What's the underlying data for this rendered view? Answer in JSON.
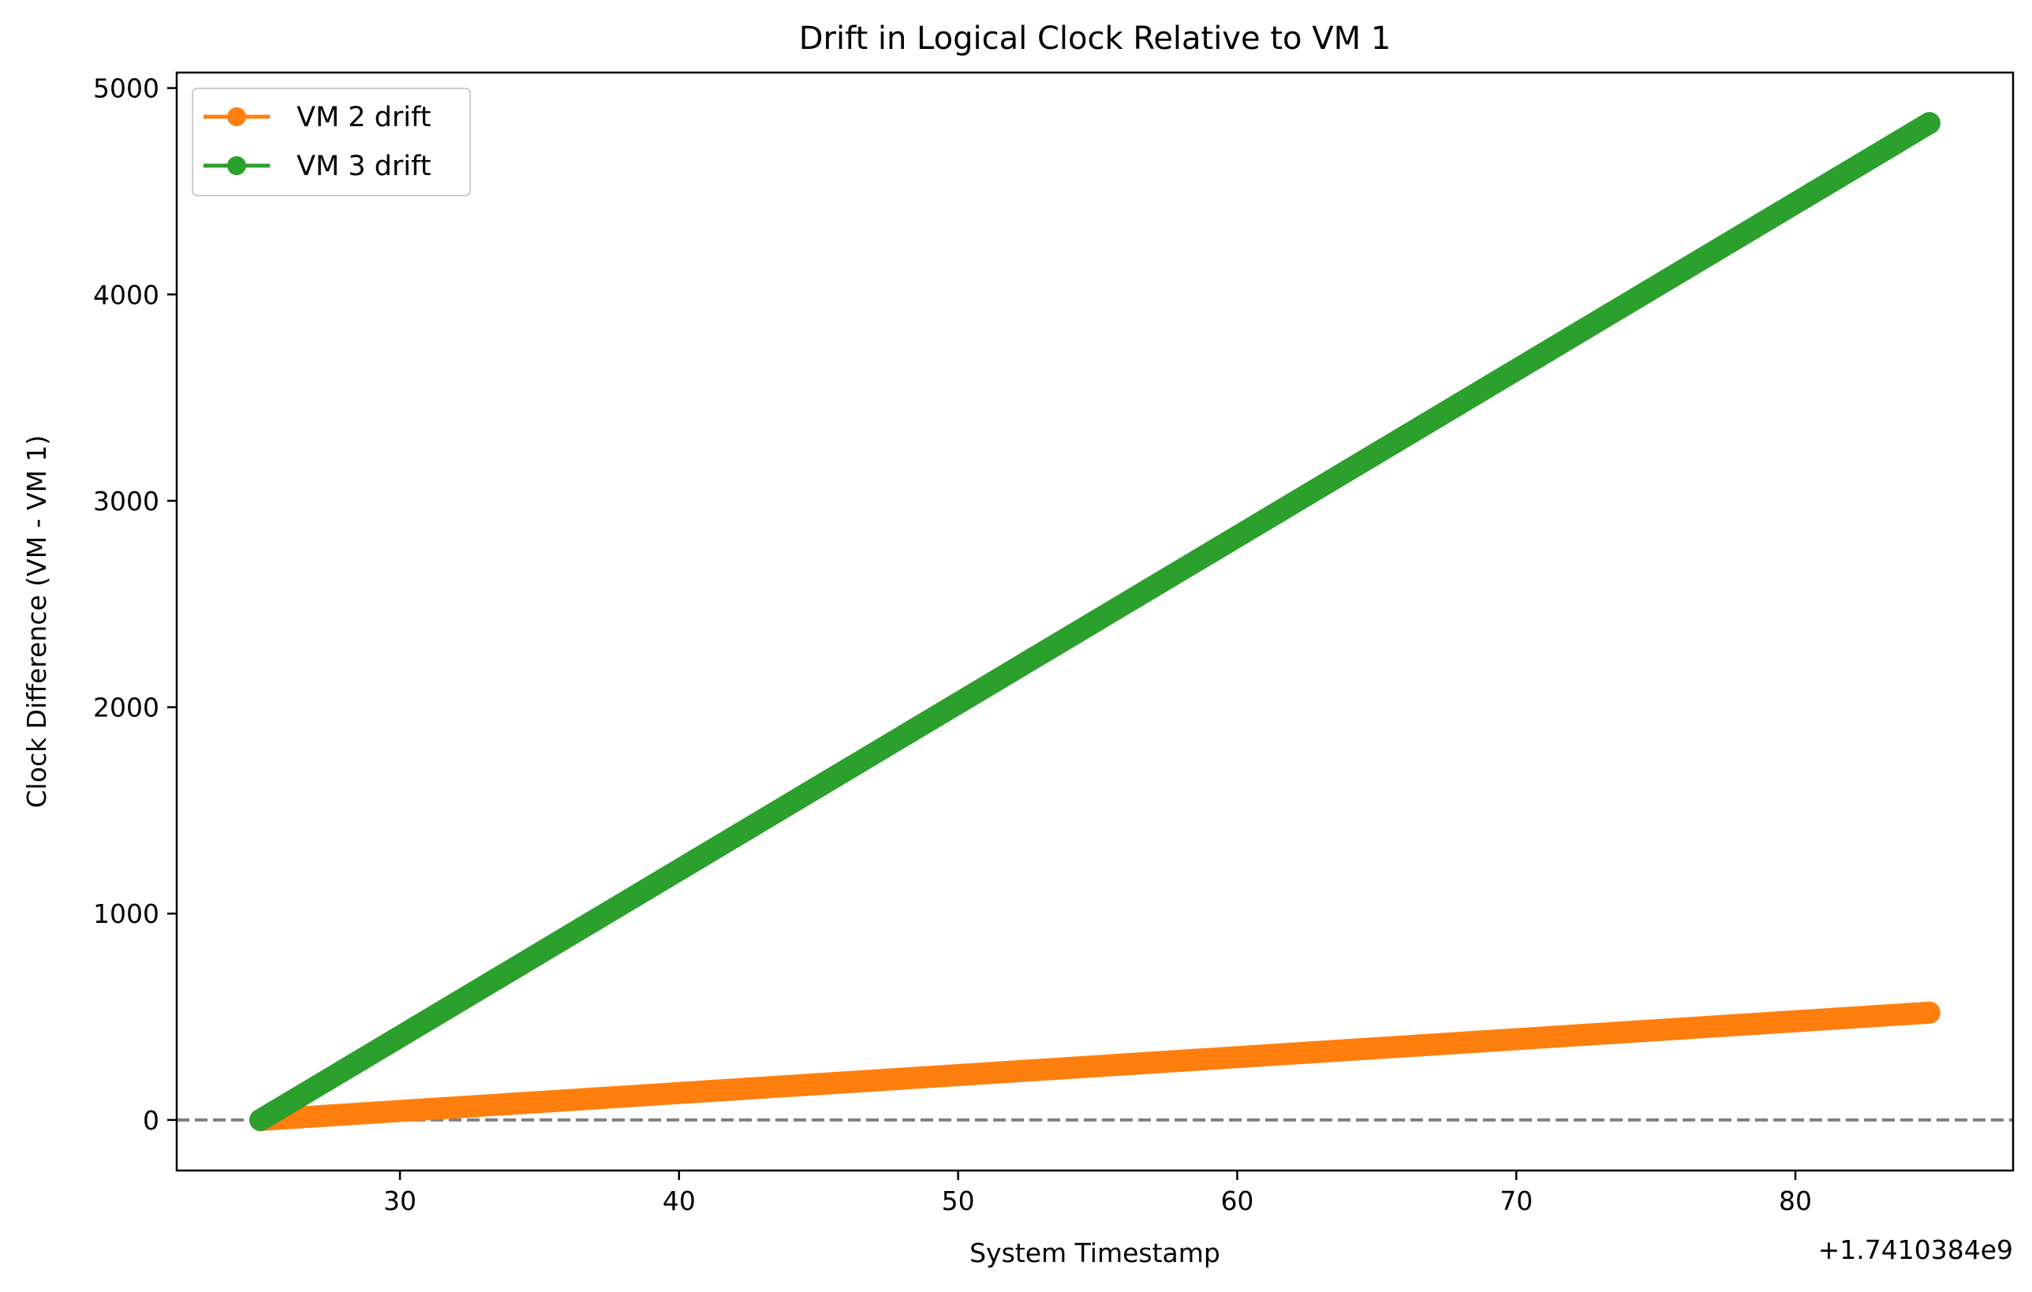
{
  "chart_data": {
    "type": "line",
    "title": "Drift in Logical Clock Relative to VM 1",
    "xlabel": "System Timestamp",
    "ylabel": "Clock Difference (VM - VM 1)",
    "x_offset_label": "+1.7410384e9",
    "x_ticks": [
      30,
      40,
      50,
      60,
      70,
      80
    ],
    "y_ticks": [
      0,
      1000,
      2000,
      3000,
      4000,
      5000
    ],
    "xlim": [
      22.0,
      87.8
    ],
    "ylim": [
      -245,
      5075
    ],
    "grid": false,
    "legend_position": "upper-left",
    "reference_line": {
      "y": 0,
      "style": "dashed",
      "color": "#808080"
    },
    "series": [
      {
        "name": "VM 2 drift",
        "color": "#ff7f0e",
        "x": [
          25,
          84.8
        ],
        "y": [
          0,
          520
        ]
      },
      {
        "name": "VM 3 drift",
        "color": "#2ca02c",
        "x": [
          25,
          84.8
        ],
        "y": [
          0,
          4830
        ]
      }
    ]
  }
}
